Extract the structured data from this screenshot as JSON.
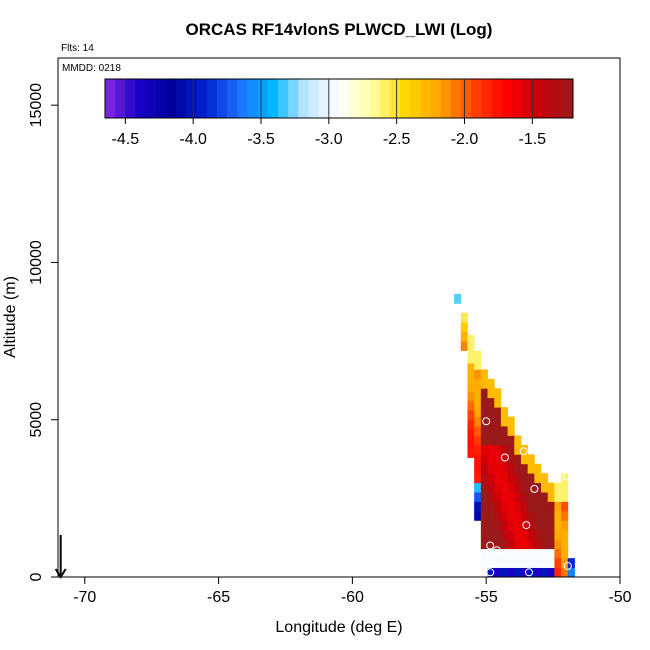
{
  "chart_data": {
    "type": "heatmap",
    "title": "ORCAS RF14vlonS PLWCD_LWI (Log)",
    "flights_note": "Flts: 14",
    "date_note": "MMDD: 0218",
    "xlabel": "Longitude (deg E)",
    "ylabel": "Altitude (m)",
    "xlim": [
      -71,
      -50
    ],
    "ylim": [
      0,
      16500
    ],
    "x_ticks": [
      -70,
      -65,
      -60,
      -55,
      -50
    ],
    "x_tick_labels": [
      "-70",
      "-65",
      "-60",
      "-55",
      "-50"
    ],
    "y_ticks": [
      0,
      5000,
      10000,
      15000
    ],
    "y_tick_labels": [
      "0",
      "5000",
      "10000",
      "15000"
    ],
    "colorbar": {
      "range": [
        -4.65,
        -1.2
      ],
      "ticks": [
        -4.5,
        -4.0,
        -3.5,
        -3.0,
        -2.5,
        -2.0,
        -1.5
      ],
      "tick_labels": [
        "-4.5",
        "-4.0",
        "-3.5",
        "-3.0",
        "-2.5",
        "-2.0",
        "-1.5"
      ],
      "colors": [
        "#8a2be2",
        "#1a00c8",
        "#00009a",
        "#0022cc",
        "#1e6fff",
        "#00b4ff",
        "#bfe6ff",
        "#ffffff",
        "#ffffa0",
        "#ffd700",
        "#ffa500",
        "#ff4500",
        "#ff0000",
        "#c8000a",
        "#9a1a1a"
      ]
    },
    "cell_size": {
      "dlon": 0.25,
      "dalt": 300
    },
    "columns": [
      {
        "lon": -56.2,
        "bottom": 8700,
        "top": 8900,
        "mode": "lightblue"
      },
      {
        "lon": -55.95,
        "bottom": 7200,
        "top": 8400,
        "mode": "upper"
      },
      {
        "lon": -55.7,
        "bottom": 3800,
        "top": 7600,
        "mode": "edge"
      },
      {
        "lon": -55.45,
        "bottom": 1800,
        "top": 7200,
        "mode": "edge"
      },
      {
        "lon": -55.2,
        "bottom": 300,
        "top": 6600,
        "mode": "core"
      },
      {
        "lon": -54.95,
        "bottom": 0,
        "top": 6200,
        "mode": "core"
      },
      {
        "lon": -54.7,
        "bottom": 0,
        "top": 5800,
        "mode": "core"
      },
      {
        "lon": -54.45,
        "bottom": 0,
        "top": 5400,
        "mode": "core"
      },
      {
        "lon": -54.2,
        "bottom": 0,
        "top": 4900,
        "mode": "core"
      },
      {
        "lon": -53.95,
        "bottom": 0,
        "top": 4500,
        "mode": "core"
      },
      {
        "lon": -53.7,
        "bottom": 0,
        "top": 4100,
        "mode": "core"
      },
      {
        "lon": -53.45,
        "bottom": 0,
        "top": 3700,
        "mode": "core"
      },
      {
        "lon": -53.2,
        "bottom": 0,
        "top": 3400,
        "mode": "core"
      },
      {
        "lon": -52.95,
        "bottom": 0,
        "top": 3100,
        "mode": "core"
      },
      {
        "lon": -52.7,
        "bottom": 0,
        "top": 3000,
        "mode": "core"
      },
      {
        "lon": -52.45,
        "bottom": 0,
        "top": 3000,
        "mode": "edge"
      },
      {
        "lon": -52.2,
        "bottom": 0,
        "top": 3200,
        "mode": "edge"
      },
      {
        "lon": -51.95,
        "bottom": 0,
        "top": 400,
        "mode": "low"
      }
    ],
    "circles": [
      {
        "lon": -55.0,
        "alt": 4950
      },
      {
        "lon": -54.3,
        "alt": 3800
      },
      {
        "lon": -53.6,
        "alt": 4000
      },
      {
        "lon": -53.2,
        "alt": 2800
      },
      {
        "lon": -53.5,
        "alt": 1650
      },
      {
        "lon": -54.85,
        "alt": 1000
      },
      {
        "lon": -54.6,
        "alt": 850
      },
      {
        "lon": -55.0,
        "alt": 350
      },
      {
        "lon": -54.85,
        "alt": 150
      },
      {
        "lon": -53.4,
        "alt": 150
      },
      {
        "lon": -51.95,
        "alt": 350
      },
      {
        "lon": -52.0,
        "alt": 3200
      }
    ],
    "arrow": {
      "lon": -70.9,
      "alt_from": 700,
      "alt_to": 0
    }
  }
}
